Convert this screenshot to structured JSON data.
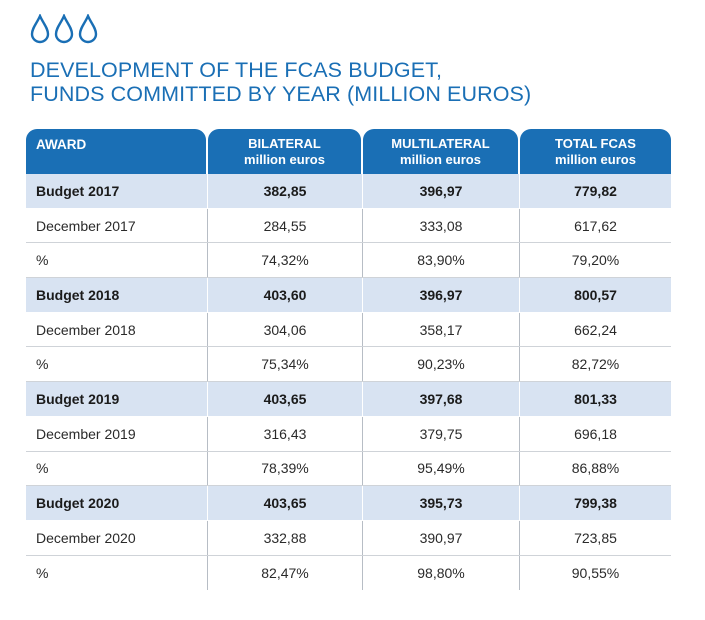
{
  "title": {
    "line1": "DEVELOPMENT OF THE FCAS BUDGET,",
    "line2": "FUNDS COMMITTED BY YEAR (MILLION EUROS)"
  },
  "icons": [
    "water-drop-icon",
    "water-drop-icon",
    "water-drop-icon"
  ],
  "colors": {
    "accent": "#1a6fb5",
    "budget_row": "#d8e3f2"
  },
  "header": {
    "award": "AWARD",
    "bilateral": [
      "BILATERAL",
      "million euros"
    ],
    "multilateral": [
      "MULTILATERAL",
      "million euros"
    ],
    "total": [
      "TOTAL FCAS",
      "million euros"
    ]
  },
  "rows": [
    {
      "type": "budget",
      "label": "Budget  2017",
      "bilateral": "382,85",
      "multilateral": "396,97",
      "total": "779,82"
    },
    {
      "type": "plain",
      "label": "December 2017",
      "bilateral": "284,55",
      "multilateral": "333,08",
      "total": "617,62"
    },
    {
      "type": "plain",
      "label": "%",
      "bilateral": "74,32%",
      "multilateral": "83,90%",
      "total": "79,20%"
    },
    {
      "type": "budget",
      "label": "Budget  2018",
      "bilateral": "403,60",
      "multilateral": "396,97",
      "total": "800,57"
    },
    {
      "type": "plain",
      "label": "December 2018",
      "bilateral": "304,06",
      "multilateral": "358,17",
      "total": "662,24"
    },
    {
      "type": "plain",
      "label": "%",
      "bilateral": "75,34%",
      "multilateral": "90,23%",
      "total": "82,72%"
    },
    {
      "type": "budget",
      "label": "Budget  2019",
      "bilateral": "403,65",
      "multilateral": "397,68",
      "total": "801,33"
    },
    {
      "type": "plain",
      "label": "December 2019",
      "bilateral": "316,43",
      "multilateral": "379,75",
      "total": "696,18"
    },
    {
      "type": "plain",
      "label": "%",
      "bilateral": "78,39%",
      "multilateral": "95,49%",
      "total": "86,88%"
    },
    {
      "type": "budget",
      "label": "Budget  2020",
      "bilateral": "403,65",
      "multilateral": "395,73",
      "total": "799,38"
    },
    {
      "type": "plain",
      "label": "December 2020",
      "bilateral": "332,88",
      "multilateral": "390,97",
      "total": "723,85"
    },
    {
      "type": "plain",
      "label": "%",
      "bilateral": "82,47%",
      "multilateral": "98,80%",
      "total": "90,55%"
    }
  ]
}
